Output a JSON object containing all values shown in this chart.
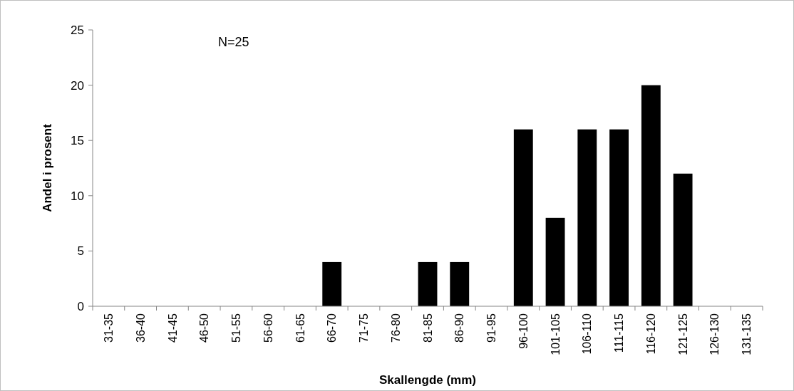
{
  "chart_data": {
    "type": "bar",
    "xlabel": "Skallengde (mm)",
    "ylabel": "Andel i prosent",
    "categories": [
      "31-35",
      "36-40",
      "41-45",
      "46-50",
      "51-55",
      "56-60",
      "61-65",
      "66-70",
      "71-75",
      "76-80",
      "81-85",
      "86-90",
      "91-95",
      "96-100",
      "101-105",
      "106-110",
      "111-115",
      "116-120",
      "121-125",
      "126-130",
      "131-135"
    ],
    "values": [
      0,
      0,
      0,
      0,
      0,
      0,
      0,
      4,
      0,
      0,
      4,
      4,
      0,
      16,
      8,
      16,
      16,
      20,
      12,
      0,
      0
    ],
    "color": "#000000",
    "ylim": [
      0,
      25
    ],
    "yticks": [
      0,
      5,
      10,
      15,
      20,
      25
    ],
    "annotations": [
      "N=25"
    ]
  }
}
